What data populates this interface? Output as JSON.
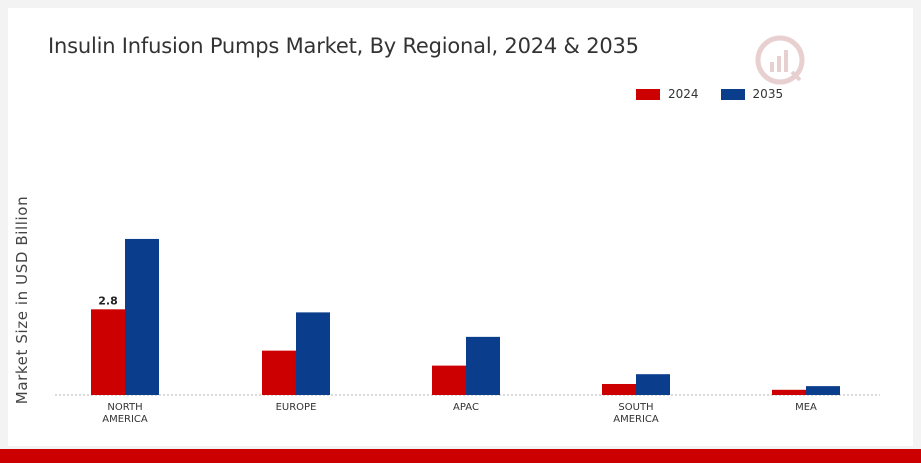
{
  "chart_data": {
    "type": "bar",
    "title": "Insulin Infusion Pumps Market, By Regional, 2024 & 2035",
    "ylabel": "Market Size in USD Billion",
    "xlabel": "",
    "categories": [
      "NORTH AMERICA",
      "EUROPE",
      "APAC",
      "SOUTH AMERICA",
      "MEA"
    ],
    "series": [
      {
        "name": "2024",
        "color": "#cc0000",
        "values": [
          2.8,
          1.45,
          0.96,
          0.36,
          0.17
        ]
      },
      {
        "name": "2035",
        "color": "#0a3d8c",
        "values": [
          5.1,
          2.7,
          1.9,
          0.68,
          0.29
        ]
      }
    ],
    "data_labels": [
      {
        "series": 0,
        "index": 0,
        "text": "2.8"
      }
    ],
    "ylim": [
      0,
      6
    ],
    "grid": false,
    "legend": "top-right"
  }
}
